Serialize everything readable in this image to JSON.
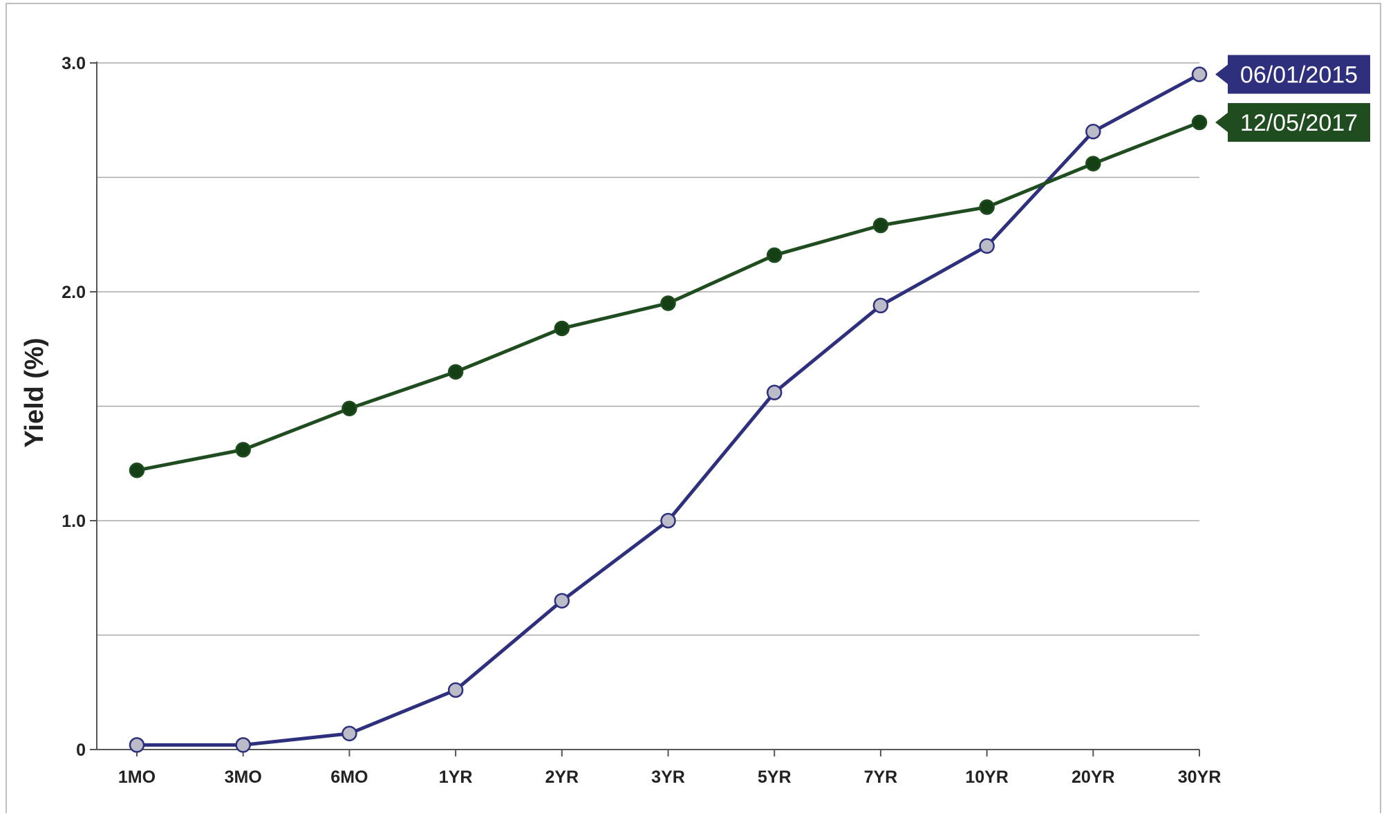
{
  "chart_data": {
    "type": "line",
    "ylabel": "Yield (%)",
    "xlabel": "",
    "title": "",
    "categories": [
      "1MO",
      "3MO",
      "6MO",
      "1YR",
      "2YR",
      "3YR",
      "5YR",
      "7YR",
      "10YR",
      "20YR",
      "30YR"
    ],
    "ylim": [
      0,
      3.0
    ],
    "y_ticks": [
      0,
      1.0,
      2.0,
      3.0
    ],
    "y_tick_labels": [
      "0",
      "1.0",
      "2.0",
      "3.0"
    ],
    "gridlines": [
      0.5,
      1.0,
      1.5,
      2.0,
      2.5,
      3.0
    ],
    "grid": true,
    "legend": "end-of-line tags",
    "series": [
      {
        "name": "06/01/2015",
        "color": "#2e2f7d",
        "marker_fill": "#bcbcc8",
        "values": [
          0.02,
          0.02,
          0.07,
          0.26,
          0.65,
          1.0,
          1.56,
          1.94,
          2.2,
          2.7,
          2.95
        ]
      },
      {
        "name": "12/05/2017",
        "color": "#1f4d1f",
        "marker_fill": "#153f15",
        "values": [
          1.22,
          1.31,
          1.49,
          1.65,
          1.84,
          1.95,
          2.16,
          2.29,
          2.37,
          2.56,
          2.74
        ]
      }
    ]
  }
}
